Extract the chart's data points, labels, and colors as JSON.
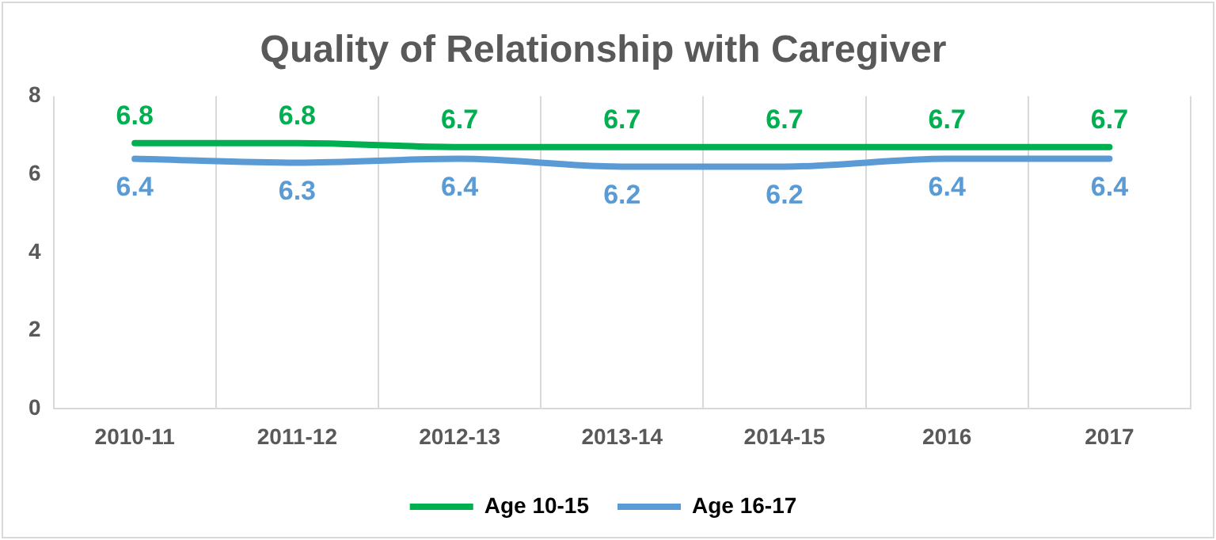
{
  "chart_data": {
    "type": "line",
    "title": "Quality of Relationship with Caregiver",
    "categories": [
      "2010-11",
      "2011-12",
      "2012-13",
      "2013-14",
      "2014-15",
      "2016",
      "2017"
    ],
    "series": [
      {
        "name": "Age 10-15",
        "color": "#00b050",
        "values": [
          6.8,
          6.8,
          6.7,
          6.7,
          6.7,
          6.7,
          6.7
        ]
      },
      {
        "name": "Age 16-17",
        "color": "#5b9bd5",
        "values": [
          6.4,
          6.3,
          6.4,
          6.2,
          6.2,
          6.4,
          6.4
        ]
      }
    ],
    "ylim": [
      0,
      8
    ],
    "yticks": [
      0,
      2,
      4,
      6,
      8
    ],
    "grid": "x",
    "legend": "bottom",
    "data_labels": true,
    "marker": "none",
    "line_style": "solid"
  }
}
